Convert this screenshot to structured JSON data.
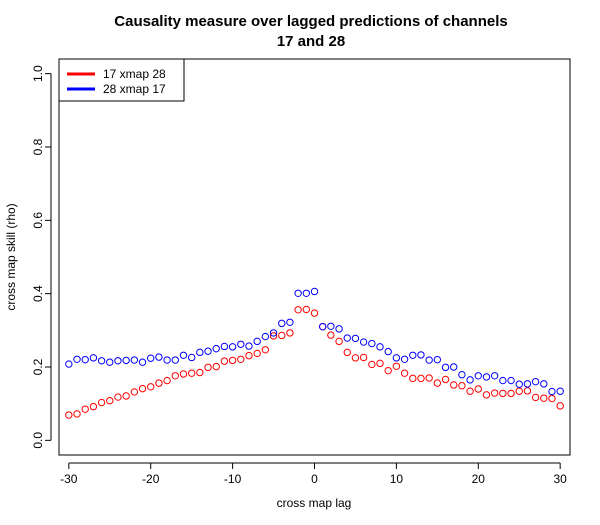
{
  "chart_data": {
    "type": "scatter",
    "title_line1": "Causality measure over lagged predictions of channels",
    "title_line2": "17 and 28",
    "xlabel": "cross map lag",
    "ylabel": "cross map skill (rho)",
    "xlim": [
      -31.2,
      31.2
    ],
    "ylim": [
      -0.04,
      1.04
    ],
    "x_ticks": [
      -30,
      -20,
      -10,
      0,
      10,
      20,
      30
    ],
    "x_tick_labels": [
      "-30",
      "-20",
      "-10",
      "0",
      "10",
      "20",
      "30"
    ],
    "y_ticks": [
      0.0,
      0.2,
      0.4,
      0.6,
      0.8,
      1.0
    ],
    "y_tick_labels": [
      "0.0",
      "0.2",
      "0.4",
      "0.6",
      "0.8",
      "1.0"
    ],
    "grid": false,
    "legend_position": "top-left",
    "x": [
      -30,
      -29,
      -28,
      -27,
      -26,
      -25,
      -24,
      -23,
      -22,
      -21,
      -20,
      -19,
      -18,
      -17,
      -16,
      -15,
      -14,
      -13,
      -12,
      -11,
      -10,
      -9,
      -8,
      -7,
      -6,
      -5,
      -4,
      -3,
      -2,
      -1,
      0,
      1,
      2,
      3,
      4,
      5,
      6,
      7,
      8,
      9,
      10,
      11,
      12,
      13,
      14,
      15,
      16,
      17,
      18,
      19,
      20,
      21,
      22,
      23,
      24,
      25,
      26,
      27,
      28,
      29,
      30
    ],
    "series": [
      {
        "name": "17 xmap 28",
        "color": "#ff0000",
        "values": [
          0.069,
          0.072,
          0.085,
          0.092,
          0.103,
          0.108,
          0.118,
          0.121,
          0.132,
          0.141,
          0.146,
          0.156,
          0.163,
          0.176,
          0.181,
          0.183,
          0.185,
          0.199,
          0.201,
          0.216,
          0.218,
          0.221,
          0.231,
          0.237,
          0.247,
          0.285,
          0.286,
          0.293,
          0.356,
          0.357,
          0.347,
          0.31,
          0.287,
          0.27,
          0.24,
          0.225,
          0.226,
          0.207,
          0.21,
          0.19,
          0.202,
          0.183,
          0.169,
          0.169,
          0.17,
          0.156,
          0.166,
          0.151,
          0.149,
          0.134,
          0.14,
          0.124,
          0.129,
          0.128,
          0.128,
          0.134,
          0.135,
          0.117,
          0.115,
          0.114,
          0.094
        ]
      },
      {
        "name": "28 xmap 17",
        "color": "#0000ff",
        "values": [
          0.208,
          0.221,
          0.22,
          0.225,
          0.217,
          0.213,
          0.217,
          0.218,
          0.219,
          0.213,
          0.224,
          0.227,
          0.219,
          0.219,
          0.232,
          0.226,
          0.24,
          0.243,
          0.25,
          0.256,
          0.255,
          0.262,
          0.257,
          0.27,
          0.283,
          0.293,
          0.319,
          0.322,
          0.401,
          0.401,
          0.406,
          0.31,
          0.311,
          0.304,
          0.279,
          0.278,
          0.268,
          0.264,
          0.255,
          0.242,
          0.225,
          0.221,
          0.232,
          0.233,
          0.219,
          0.22,
          0.199,
          0.2,
          0.179,
          0.165,
          0.176,
          0.173,
          0.176,
          0.163,
          0.163,
          0.153,
          0.154,
          0.16,
          0.154,
          0.133,
          0.134
        ]
      }
    ]
  }
}
